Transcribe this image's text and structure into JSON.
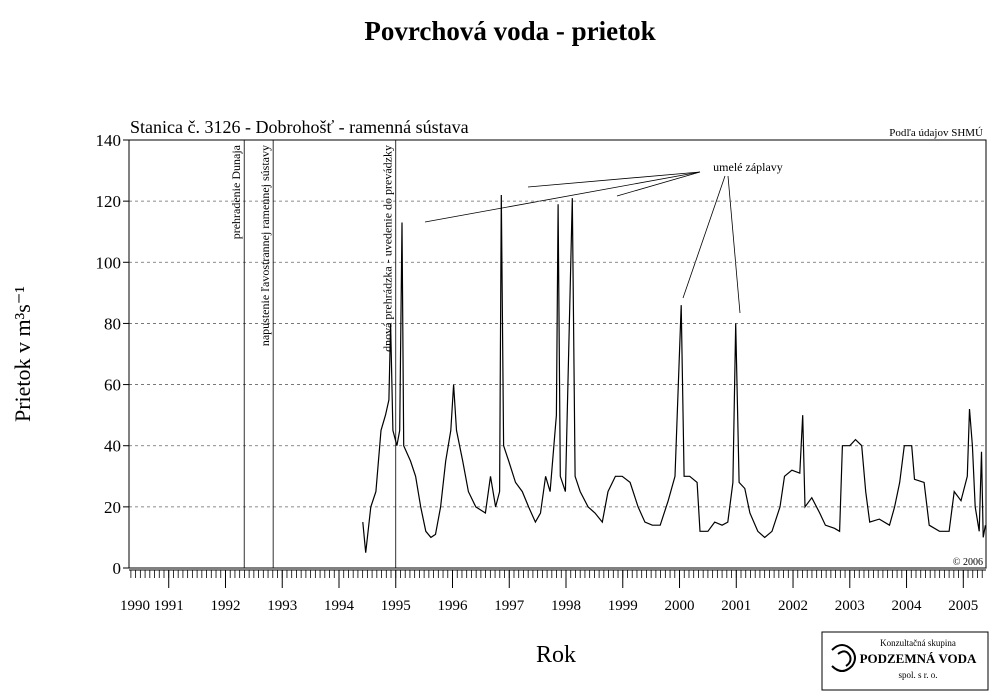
{
  "chart_data": {
    "type": "line",
    "title": "Povrchová voda -  prietok",
    "subtitle": "Stanica č. 3126 - Dobrohošť - ramenná sústava",
    "source": "Podľa údajov SHMÚ",
    "copyright": "© 2006",
    "x_label": "Rok",
    "y_label": "Prietok v m³s⁻¹",
    "annotation": "umelé záplavy",
    "logo": {
      "line1": "Konzultačná skupina",
      "line2": "PODZEMNÁ VODA",
      "line3": "spol. s r. o."
    },
    "vlines": [
      {
        "x": 1992.33,
        "label": "prehradenie Dunaja"
      },
      {
        "x": 1992.84,
        "label": "napustenie ľavostrannej ramennej sústavy"
      },
      {
        "x": 1995.0,
        "label": "dnová prehrádzka - uvedenie do prevádzky"
      }
    ],
    "xlim": [
      1990.3,
      2005.4
    ],
    "xticks": [
      1990,
      1991,
      1992,
      1993,
      1994,
      1995,
      1996,
      1997,
      1998,
      1999,
      2000,
      2001,
      2002,
      2003,
      2004,
      2005
    ],
    "ylim": [
      0,
      140
    ],
    "yticks": [
      0,
      20,
      40,
      60,
      80,
      100,
      120,
      140
    ],
    "grid": true,
    "series": [
      {
        "name": "Prietok",
        "color": "#000000",
        "x": [
          1994.42,
          1994.47,
          1994.56,
          1994.65,
          1994.74,
          1994.82,
          1994.88,
          1994.91,
          1994.95,
          1995.02,
          1995.07,
          1995.11,
          1995.14,
          1995.26,
          1995.35,
          1995.44,
          1995.53,
          1995.62,
          1995.7,
          1995.79,
          1995.88,
          1995.97,
          1996.02,
          1996.07,
          1996.18,
          1996.28,
          1996.41,
          1996.58,
          1996.67,
          1996.76,
          1996.83,
          1996.86,
          1996.9,
          1996.99,
          1997.11,
          1997.23,
          1997.34,
          1997.46,
          1997.55,
          1997.64,
          1997.72,
          1997.83,
          1997.86,
          1997.9,
          1997.99,
          1998.11,
          1998.16,
          1998.25,
          1998.39,
          1998.51,
          1998.64,
          1998.74,
          1998.87,
          1998.99,
          1999.13,
          1999.27,
          1999.39,
          1999.52,
          1999.66,
          1999.8,
          1999.92,
          2000.03,
          2000.08,
          2000.18,
          2000.31,
          2000.36,
          2000.5,
          2000.62,
          2000.75,
          2000.85,
          2000.94,
          2000.99,
          2001.05,
          2001.15,
          2001.24,
          2001.38,
          2001.5,
          2001.63,
          2001.77,
          2001.85,
          2001.98,
          2002.12,
          2002.17,
          2002.21,
          2002.33,
          2002.47,
          2002.57,
          2002.73,
          2002.82,
          2002.87,
          2003.0,
          2003.1,
          2003.21,
          2003.28,
          2003.35,
          2003.52,
          2003.7,
          2003.79,
          2003.88,
          2003.96,
          2004.09,
          2004.14,
          2004.31,
          2004.4,
          2004.58,
          2004.75,
          2004.84,
          2004.96,
          2005.07,
          2005.11,
          2005.16,
          2005.21,
          2005.28,
          2005.32,
          2005.35,
          2005.39
        ],
        "values": [
          15,
          5,
          20,
          25,
          45,
          50,
          55,
          80,
          45,
          40,
          45,
          113,
          40,
          35,
          30,
          20,
          12,
          10,
          11,
          20,
          35,
          45,
          60,
          45,
          35,
          25,
          20,
          18,
          30,
          20,
          25,
          122,
          40,
          35,
          28,
          25,
          20,
          15,
          18,
          30,
          25,
          50,
          119,
          30,
          25,
          121,
          30,
          25,
          20,
          18,
          15,
          25,
          30,
          30,
          28,
          20,
          15,
          14,
          14,
          22,
          30,
          86,
          30,
          30,
          28,
          12,
          12,
          15,
          14,
          15,
          28,
          80,
          28,
          26,
          18,
          12,
          10,
          12,
          20,
          30,
          32,
          31,
          50,
          20,
          23,
          18,
          14,
          13,
          12,
          40,
          40,
          42,
          40,
          25,
          15,
          16,
          14,
          20,
          28,
          40,
          40,
          29,
          28,
          14,
          12,
          12,
          25,
          22,
          30,
          52,
          40,
          20,
          12,
          38,
          10,
          14
        ]
      }
    ]
  }
}
